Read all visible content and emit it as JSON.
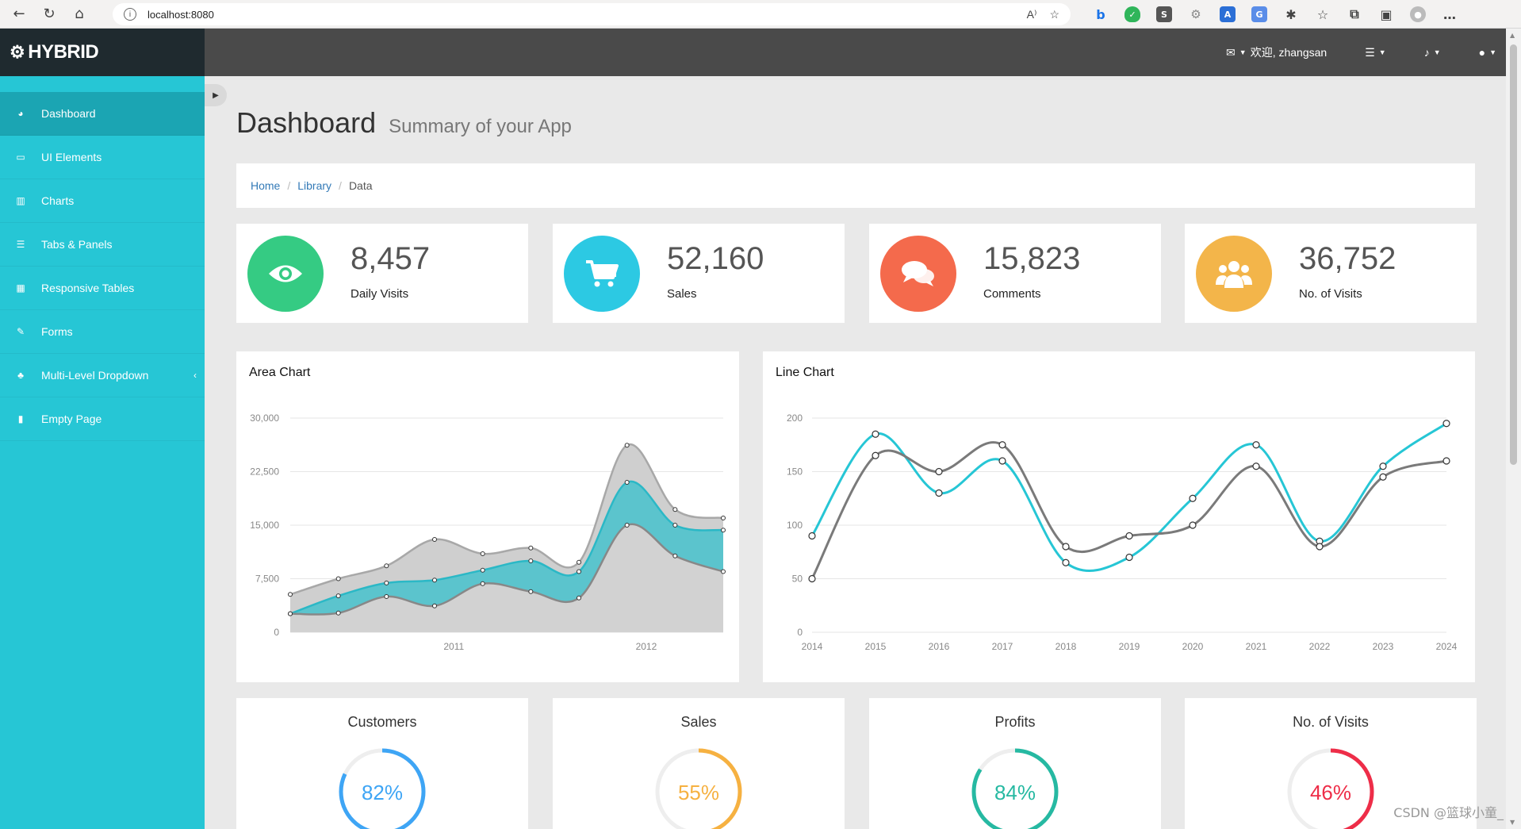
{
  "browser": {
    "url": "localhost:8080",
    "read_aloud": "A⁾"
  },
  "brand": {
    "name": "HYBRID"
  },
  "topnav": {
    "welcome": "欢迎, zhangsan"
  },
  "sidebar": {
    "items": [
      {
        "label": "Dashboard",
        "icon": "dashboard-icon",
        "glyph": "◕",
        "active": true
      },
      {
        "label": "UI Elements",
        "icon": "desktop-icon",
        "glyph": "▭"
      },
      {
        "label": "Charts",
        "icon": "bar-chart-icon",
        "glyph": "▥"
      },
      {
        "label": "Tabs & Panels",
        "icon": "list-icon",
        "glyph": "☰"
      },
      {
        "label": "Responsive Tables",
        "icon": "table-icon",
        "glyph": "▦"
      },
      {
        "label": "Forms",
        "icon": "edit-icon",
        "glyph": "✎"
      },
      {
        "label": "Multi-Level Dropdown",
        "icon": "sitemap-icon",
        "glyph": "♣"
      },
      {
        "label": "Empty Page",
        "icon": "file-icon",
        "glyph": "▮"
      }
    ]
  },
  "page": {
    "title": "Dashboard",
    "subtitle": "Summary of your App"
  },
  "breadcrumb": {
    "home": "Home",
    "library": "Library",
    "current": "Data",
    "separator": "/"
  },
  "stats": [
    {
      "value": "8,457",
      "label": "Daily Visits",
      "color": "#35cb83",
      "icon": "eye-icon"
    },
    {
      "value": "52,160",
      "label": "Sales",
      "color": "#2cc9e3",
      "icon": "cart-icon"
    },
    {
      "value": "15,823",
      "label": "Comments",
      "color": "#f46a4c",
      "icon": "comments-icon"
    },
    {
      "value": "36,752",
      "label": "No. of Visits",
      "color": "#f3b54a",
      "icon": "users-icon"
    }
  ],
  "area_chart_title": "Area Chart",
  "line_chart_title": "Line Chart",
  "chart_data": [
    {
      "type": "area",
      "title": "Area Chart",
      "x_tick_labels": [
        "2011",
        "2012"
      ],
      "y_tick_labels": [
        "0",
        "7,500",
        "15,000",
        "22,500",
        "30,000"
      ],
      "ylim": [
        0,
        30000
      ],
      "series": [
        {
          "values": [
            5300,
            7500,
            9300,
            13000,
            11000,
            11800,
            9800,
            26200,
            17200,
            16000
          ],
          "color": "#a8a8a8"
        },
        {
          "values": [
            2600,
            5100,
            6900,
            7300,
            8700,
            10000,
            8500,
            21000,
            15000,
            14300
          ],
          "color": "#2bb8c6"
        },
        {
          "values": [
            2600,
            2700,
            5000,
            3700,
            6800,
            5700,
            4800,
            15000,
            10700,
            8500
          ],
          "color": "#888888"
        }
      ],
      "grid": true
    },
    {
      "type": "line",
      "title": "Line Chart",
      "x": [
        "2014",
        "2015",
        "2016",
        "2017",
        "2018",
        "2019",
        "2020",
        "2021",
        "2022",
        "2023",
        "2024"
      ],
      "y_tick_labels": [
        "0",
        "50",
        "100",
        "150",
        "200"
      ],
      "ylim": [
        0,
        200
      ],
      "series": [
        {
          "values": [
            90,
            185,
            130,
            160,
            65,
            70,
            125,
            175,
            85,
            155,
            195
          ],
          "color": "#26c6d5"
        },
        {
          "values": [
            50,
            165,
            150,
            175,
            80,
            90,
            100,
            155,
            80,
            145,
            160
          ],
          "color": "#7a7a7a"
        }
      ],
      "grid": true
    }
  ],
  "donuts": [
    {
      "title": "Customers",
      "percent": 82,
      "label": "82%",
      "color": "#3ea5f5"
    },
    {
      "title": "Sales",
      "percent": 55,
      "label": "55%",
      "color": "#f6b141"
    },
    {
      "title": "Profits",
      "percent": 84,
      "label": "84%",
      "color": "#26b9a2"
    },
    {
      "title": "No. of Visits",
      "percent": 46,
      "label": "46%",
      "color": "#ee2d48"
    }
  ],
  "watermark": "CSDN @篮球小童_"
}
